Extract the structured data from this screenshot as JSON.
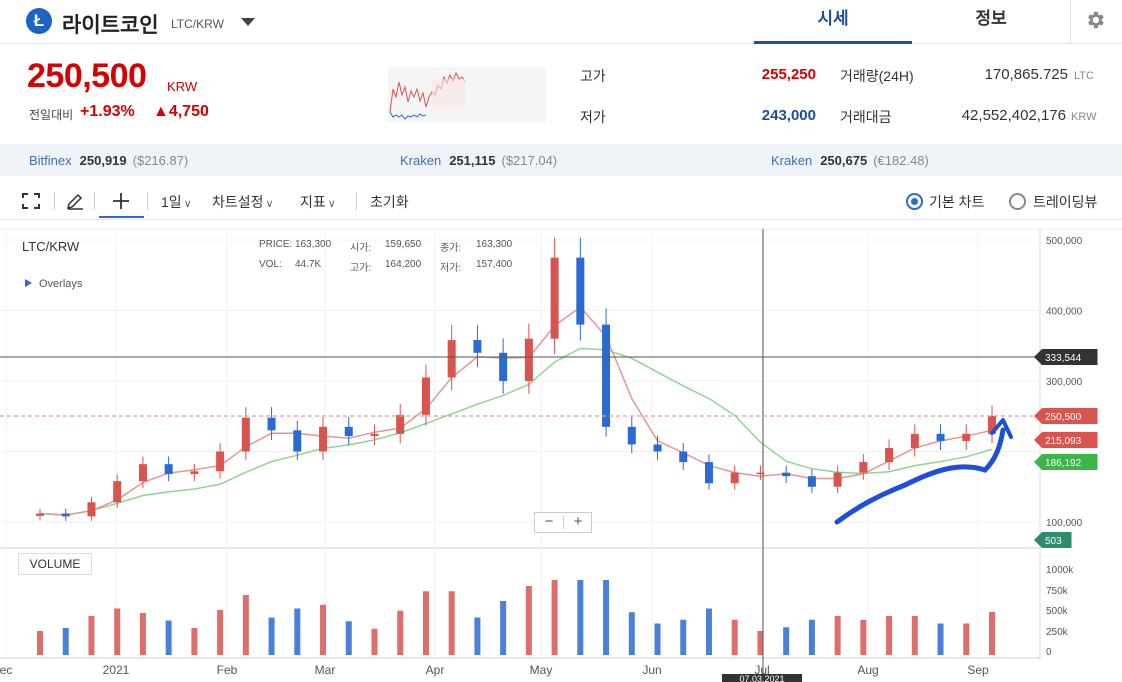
{
  "header": {
    "coin_symbol_letter": "Ł",
    "coin_name": "라이트코인",
    "pair": "LTC/KRW",
    "tabs": [
      {
        "label": "시세",
        "active": true
      },
      {
        "label": "정보",
        "active": false
      }
    ]
  },
  "price": {
    "current": "250,500",
    "unit": "KRW",
    "change_label": "전일대비",
    "change_pct": "+1.93%",
    "change_amt": "▲4,750",
    "color_up": "#d60000"
  },
  "stats": {
    "high_label": "고가",
    "high": "255,250",
    "low_label": "저가",
    "low": "243,000",
    "volume_label": "거래량(24H)",
    "volume": "170,865.725",
    "volume_unit": "LTC",
    "amount_label": "거래대금",
    "amount": "42,552,402,176",
    "amount_unit": "KRW"
  },
  "exchanges": [
    {
      "name": "Bitfinex",
      "price": "250,919",
      "sub": "($216.87)"
    },
    {
      "name": "Kraken",
      "price": "251,115",
      "sub": "($217.04)"
    },
    {
      "name": "Kraken",
      "price": "250,675",
      "sub": "(€182.48)"
    }
  ],
  "toolbar": {
    "interval": "1일",
    "chart_settings": "차트설정",
    "indicators": "지표",
    "reset": "초기화",
    "basic_chart": "기본 차트",
    "tradingview": "트레이딩뷰"
  },
  "chart": {
    "pair_label": "LTC/KRW",
    "overlays": "Overlays",
    "ohlc": {
      "price_label": "PRICE:",
      "price": "163,300",
      "open_label": "시가:",
      "open": "159,650",
      "close_label": "종가:",
      "close": "163,300",
      "vol_label": "VOL:",
      "vol": "44.7K",
      "high_label": "고가:",
      "high": "164,200",
      "low_label": "저가:",
      "low": "157,400"
    },
    "volume_label": "VOLUME",
    "zoom_out": "−",
    "zoom_in": "+",
    "crosshair_date": "07.03.2021",
    "colors": {
      "up": "#d9534f",
      "down": "#2a6ad3",
      "ma_short": "#e8958f",
      "ma_long": "#8fd58f",
      "annotation": "#1f4fd8"
    }
  },
  "chart_data": {
    "type": "line",
    "title": "LTC/KRW",
    "x_ticks": [
      "ec",
      "2021",
      "Feb",
      "Mar",
      "Apr",
      "May",
      "Jun",
      "Jul",
      "Aug",
      "Sep"
    ],
    "y_ticks": [
      "500,000",
      "400,000",
      "300,000",
      "100,000"
    ],
    "price_markers": [
      {
        "label": "333,544",
        "color": "#333333"
      },
      {
        "label": "250,500",
        "color": "#d9534f"
      },
      {
        "label": "215,093",
        "color": "#d9534f"
      },
      {
        "label": "186,192",
        "color": "#3cb54a"
      },
      {
        "label": "503",
        "color": "#2e8b6e"
      }
    ],
    "volume_ticks": [
      "1000k",
      "750k",
      "500k",
      "250k",
      "0"
    ],
    "close_series": {
      "name": "",
      "x": [
        "2020-12-20",
        "2020-12-27",
        "2021-01-03",
        "2021-01-10",
        "2021-01-17",
        "2021-01-24",
        "2021-01-31",
        "2021-02-07",
        "2021-02-14",
        "2021-02-21",
        "2021-02-28",
        "2021-03-07",
        "2021-03-14",
        "2021-03-21",
        "2021-03-28",
        "2021-04-04",
        "2021-04-11",
        "2021-04-18",
        "2021-04-25",
        "2021-05-02",
        "2021-05-09",
        "2021-05-16",
        "2021-05-23",
        "2021-05-30",
        "2021-06-06",
        "2021-06-13",
        "2021-06-20",
        "2021-06-27",
        "2021-07-04",
        "2021-07-11",
        "2021-07-18",
        "2021-07-25",
        "2021-08-01",
        "2021-08-08",
        "2021-08-15",
        "2021-08-22",
        "2021-08-29",
        "2021-09-05"
      ],
      "values": [
        112000,
        108000,
        128000,
        158000,
        182000,
        168000,
        172000,
        200000,
        248000,
        230000,
        200000,
        235000,
        222000,
        225000,
        252000,
        305000,
        358000,
        340000,
        300000,
        360000,
        475000,
        380000,
        235000,
        210000,
        200000,
        185000,
        155000,
        170000,
        170000,
        165000,
        150000,
        170000,
        185000,
        205000,
        225000,
        215000,
        225000,
        250500
      ]
    }
  }
}
